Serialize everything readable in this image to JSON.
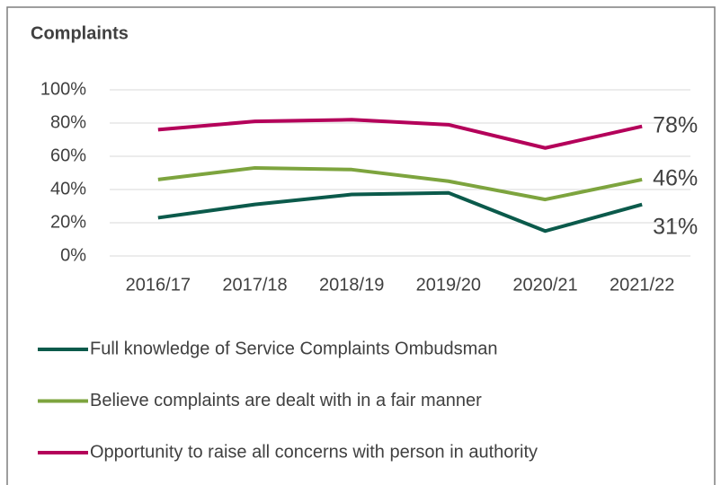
{
  "chart_data": {
    "type": "line",
    "title": "Complaints",
    "categories": [
      "2016/17",
      "2017/18",
      "2018/19",
      "2019/20",
      "2020/21",
      "2021/22"
    ],
    "series": [
      {
        "name": "Full knowledge of Service Complaints Ombudsman",
        "color": "#0b5a4b",
        "values": [
          23,
          31,
          37,
          38,
          15,
          31
        ],
        "value_labels": [
          null,
          null,
          null,
          null,
          null,
          "31%"
        ]
      },
      {
        "name": "Believe complaints are dealt with in a fair manner",
        "color": "#7da43e",
        "values": [
          46,
          53,
          52,
          45,
          34,
          46
        ],
        "value_labels": [
          null,
          null,
          null,
          null,
          null,
          "46%"
        ]
      },
      {
        "name": "Opportunity to raise all concerns with person in authority",
        "color": "#b4005a",
        "values": [
          76,
          81,
          82,
          79,
          65,
          78
        ],
        "value_labels": [
          null,
          null,
          null,
          null,
          null,
          "78%"
        ]
      }
    ],
    "ylim": [
      0,
      100
    ],
    "yticks": [
      {
        "value": 0,
        "label": "0%"
      },
      {
        "value": 20,
        "label": "20%"
      },
      {
        "value": 40,
        "label": "40%"
      },
      {
        "value": 60,
        "label": "60%"
      },
      {
        "value": 80,
        "label": "80%"
      },
      {
        "value": 100,
        "label": "100%"
      }
    ],
    "grid": true,
    "legend": "bottom"
  }
}
